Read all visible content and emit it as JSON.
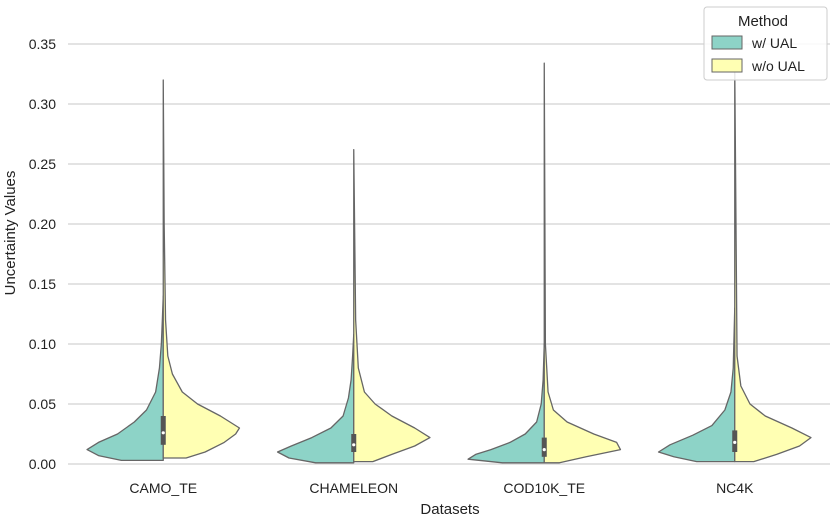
{
  "chart_data": {
    "type": "violin",
    "split": true,
    "xlabel": "Datasets",
    "ylabel": "Uncertainty Values",
    "ylim": [
      0,
      0.35
    ],
    "yticks": [
      "0.00",
      "0.05",
      "0.10",
      "0.15",
      "0.20",
      "0.25",
      "0.30",
      "0.35"
    ],
    "grid": "horizontal",
    "categories": [
      "CAMO_TE",
      "CHAMELEON",
      "COD10K_TE",
      "NC4K"
    ],
    "legend": {
      "title": "Method",
      "placement": "top-right",
      "entries": [
        "w/ UAL",
        "w/o UAL"
      ]
    },
    "series": [
      {
        "name": "w/ UAL",
        "side": "left",
        "color": "#8dd3c7",
        "distributions": [
          {
            "category": "CAMO_TE",
            "min": 0.003,
            "max": 0.14,
            "q1": 0.016,
            "median": 0.026,
            "q3": 0.04,
            "profile": [
              [
                0.003,
                0.55
              ],
              [
                0.007,
                0.85
              ],
              [
                0.012,
                1.0
              ],
              [
                0.018,
                0.85
              ],
              [
                0.025,
                0.6
              ],
              [
                0.035,
                0.38
              ],
              [
                0.045,
                0.22
              ],
              [
                0.06,
                0.1
              ],
              [
                0.08,
                0.05
              ],
              [
                0.1,
                0.025
              ],
              [
                0.12,
                0.012
              ],
              [
                0.14,
                0.0
              ]
            ]
          },
          {
            "category": "CHAMELEON",
            "min": 0.001,
            "max": 0.108,
            "q1": 0.01,
            "median": 0.016,
            "q3": 0.025,
            "profile": [
              [
                0.001,
                0.5
              ],
              [
                0.005,
                0.85
              ],
              [
                0.01,
                1.0
              ],
              [
                0.015,
                0.82
              ],
              [
                0.022,
                0.55
              ],
              [
                0.03,
                0.3
              ],
              [
                0.04,
                0.14
              ],
              [
                0.055,
                0.07
              ],
              [
                0.07,
                0.035
              ],
              [
                0.09,
                0.015
              ],
              [
                0.108,
                0.0
              ]
            ]
          },
          {
            "category": "COD10K_TE",
            "min": 0.001,
            "max": 0.1,
            "q1": 0.006,
            "median": 0.012,
            "q3": 0.022,
            "profile": [
              [
                0.001,
                0.55
              ],
              [
                0.004,
                1.0
              ],
              [
                0.008,
                0.9
              ],
              [
                0.012,
                0.7
              ],
              [
                0.018,
                0.45
              ],
              [
                0.025,
                0.25
              ],
              [
                0.035,
                0.1
              ],
              [
                0.05,
                0.04
              ],
              [
                0.07,
                0.015
              ],
              [
                0.1,
                0.0
              ]
            ]
          },
          {
            "category": "NC4K",
            "min": 0.002,
            "max": 0.13,
            "q1": 0.01,
            "median": 0.018,
            "q3": 0.028,
            "profile": [
              [
                0.002,
                0.5
              ],
              [
                0.006,
                0.8
              ],
              [
                0.01,
                1.0
              ],
              [
                0.016,
                0.85
              ],
              [
                0.024,
                0.55
              ],
              [
                0.032,
                0.3
              ],
              [
                0.045,
                0.13
              ],
              [
                0.06,
                0.05
              ],
              [
                0.08,
                0.02
              ],
              [
                0.13,
                0.0
              ]
            ]
          }
        ]
      },
      {
        "name": "w/o UAL",
        "side": "right",
        "color": "#ffffb3",
        "distributions": [
          {
            "category": "CAMO_TE",
            "min": 0.005,
            "max": 0.32,
            "q1": 0.016,
            "median": 0.026,
            "q3": 0.04,
            "profile": [
              [
                0.005,
                0.3
              ],
              [
                0.01,
                0.55
              ],
              [
                0.018,
                0.8
              ],
              [
                0.025,
                0.95
              ],
              [
                0.03,
                1.0
              ],
              [
                0.04,
                0.75
              ],
              [
                0.05,
                0.45
              ],
              [
                0.06,
                0.25
              ],
              [
                0.075,
                0.12
              ],
              [
                0.09,
                0.06
              ],
              [
                0.12,
                0.03
              ],
              [
                0.2,
                0.012
              ],
              [
                0.32,
                0.0
              ]
            ]
          },
          {
            "category": "CHAMELEON",
            "min": 0.002,
            "max": 0.262,
            "q1": 0.01,
            "median": 0.016,
            "q3": 0.025,
            "profile": [
              [
                0.002,
                0.25
              ],
              [
                0.008,
                0.5
              ],
              [
                0.015,
                0.8
              ],
              [
                0.022,
                1.0
              ],
              [
                0.03,
                0.8
              ],
              [
                0.04,
                0.5
              ],
              [
                0.05,
                0.28
              ],
              [
                0.06,
                0.14
              ],
              [
                0.08,
                0.06
              ],
              [
                0.12,
                0.025
              ],
              [
                0.262,
                0.0
              ]
            ]
          },
          {
            "category": "COD10K_TE",
            "min": 0.001,
            "max": 0.334,
            "q1": 0.006,
            "median": 0.012,
            "q3": 0.022,
            "profile": [
              [
                0.001,
                0.2
              ],
              [
                0.006,
                0.55
              ],
              [
                0.012,
                1.0
              ],
              [
                0.018,
                0.95
              ],
              [
                0.025,
                0.65
              ],
              [
                0.035,
                0.3
              ],
              [
                0.045,
                0.12
              ],
              [
                0.06,
                0.05
              ],
              [
                0.1,
                0.015
              ],
              [
                0.334,
                0.0
              ]
            ]
          },
          {
            "category": "NC4K",
            "min": 0.002,
            "max": 0.33,
            "q1": 0.01,
            "median": 0.018,
            "q3": 0.028,
            "profile": [
              [
                0.002,
                0.25
              ],
              [
                0.008,
                0.55
              ],
              [
                0.015,
                0.85
              ],
              [
                0.022,
                1.0
              ],
              [
                0.03,
                0.75
              ],
              [
                0.04,
                0.4
              ],
              [
                0.05,
                0.2
              ],
              [
                0.065,
                0.08
              ],
              [
                0.09,
                0.03
              ],
              [
                0.33,
                0.0
              ]
            ]
          }
        ]
      }
    ]
  }
}
